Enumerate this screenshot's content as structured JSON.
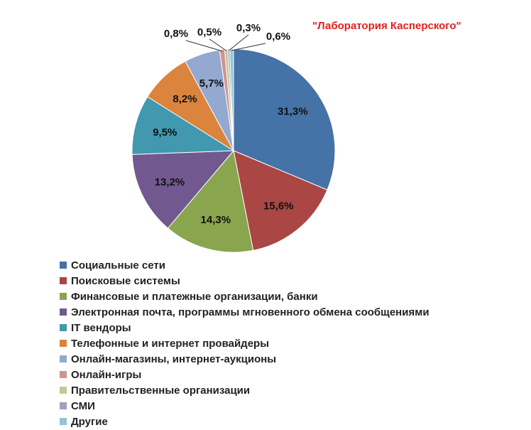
{
  "chart_data": {
    "type": "pie",
    "title": "\"Лаборатория Касперского\"",
    "legend_position": "bottom-left",
    "slices": [
      {
        "name": "Социальные сети",
        "value": 31.3,
        "label": "31,3%",
        "color": "#4572a7"
      },
      {
        "name": "Поисковые системы",
        "value": 15.6,
        "label": "15,6%",
        "color": "#aa4643"
      },
      {
        "name": "Финансовые и платежные организации, банки",
        "value": 14.3,
        "label": "14,3%",
        "color": "#89a54e"
      },
      {
        "name": "Электронная почта, программы мгновенного обмена сообщениями",
        "value": 13.2,
        "label": "13,2%",
        "color": "#71588f"
      },
      {
        "name": "IT вендоры",
        "value": 9.5,
        "label": "9,5%",
        "color": "#4198af"
      },
      {
        "name": "Телефонные и интернет провайдеры",
        "value": 8.2,
        "label": "8,2%",
        "color": "#db843d"
      },
      {
        "name": "Онлайн-магазины, интернет-аукционы",
        "value": 5.7,
        "label": "5,7%",
        "color": "#93a9cf"
      },
      {
        "name": "Онлайн-игры",
        "value": 0.8,
        "label": "0,8%",
        "color": "#d19392"
      },
      {
        "name": "Правительственные организации",
        "value": 0.5,
        "label": "0,5%",
        "color": "#b9cd96"
      },
      {
        "name": "СМИ",
        "value": 0.3,
        "label": "0,3%",
        "color": "#a99bbd"
      },
      {
        "name": "Другие",
        "value": 0.6,
        "label": "0,6%",
        "color": "#92c5d8"
      }
    ]
  }
}
